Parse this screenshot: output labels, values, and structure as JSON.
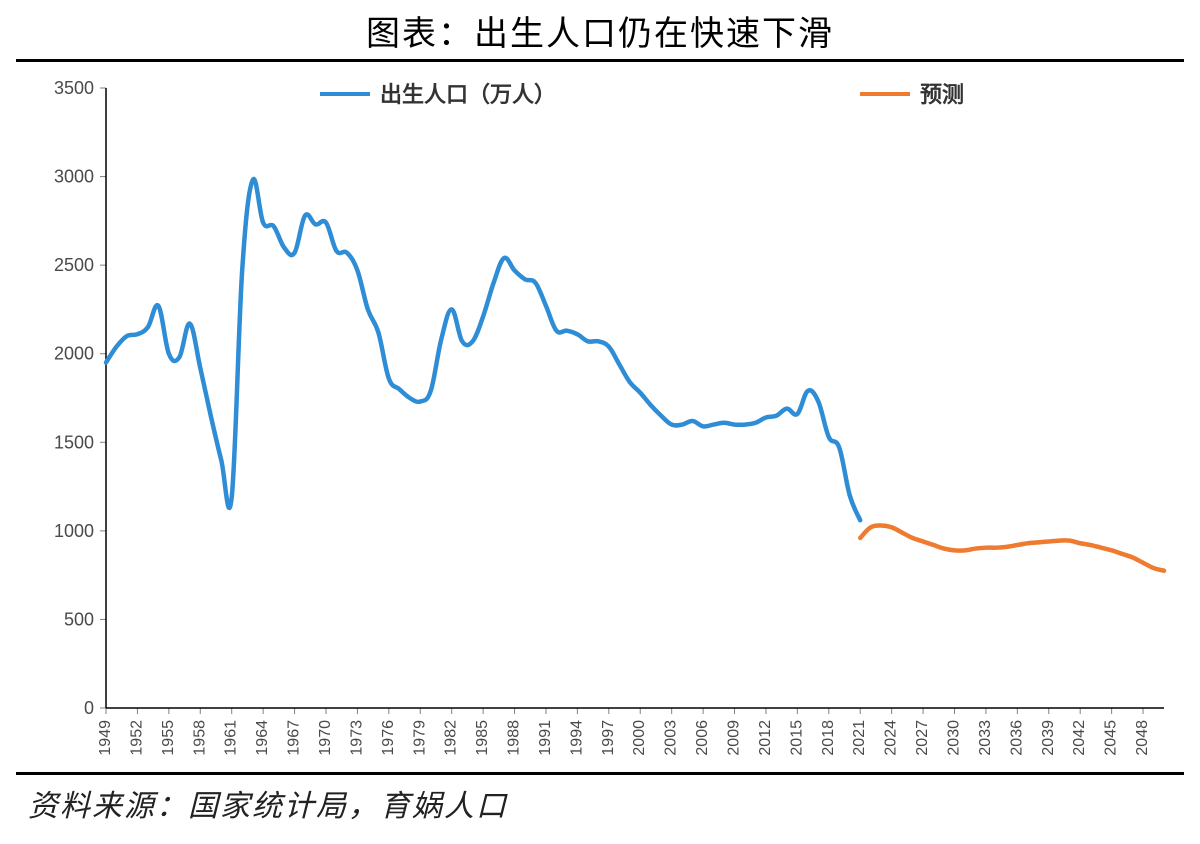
{
  "title": "图表：出生人口仍在快速下滑",
  "source_line": "资料来源：国家统计局，育娲人口",
  "chart": {
    "type": "line",
    "background_color": "#ffffff",
    "plot_border_color": "#000000",
    "axis_tick_color": "#808080",
    "ylabel": "",
    "ylim": [
      0,
      3500
    ],
    "ytick_step": 500,
    "yticks": [
      0,
      500,
      1000,
      1500,
      2000,
      2500,
      3000,
      3500
    ],
    "xlim": [
      1949,
      2050
    ],
    "xticks": [
      1949,
      1952,
      1955,
      1958,
      1961,
      1964,
      1967,
      1970,
      1973,
      1976,
      1979,
      1982,
      1985,
      1988,
      1991,
      1994,
      1997,
      2000,
      2003,
      2006,
      2009,
      2012,
      2015,
      2018,
      2021,
      2024,
      2027,
      2030,
      2033,
      2036,
      2039,
      2042,
      2045,
      2048
    ],
    "legend": {
      "position": "top-center",
      "items": [
        {
          "label": "出生人口（万人）",
          "color": "#2f8dd6"
        },
        {
          "label": "预测",
          "color": "#ee7b30"
        }
      ],
      "line_width": 4
    },
    "series": [
      {
        "name": "出生人口（万人）",
        "color": "#2f8dd6",
        "line_width": 4.5,
        "x": [
          1949,
          1950,
          1951,
          1952,
          1953,
          1954,
          1955,
          1956,
          1957,
          1958,
          1959,
          1960,
          1961,
          1962,
          1963,
          1964,
          1965,
          1966,
          1967,
          1968,
          1969,
          1970,
          1971,
          1972,
          1973,
          1974,
          1975,
          1976,
          1977,
          1978,
          1979,
          1980,
          1981,
          1982,
          1983,
          1984,
          1985,
          1986,
          1987,
          1988,
          1989,
          1990,
          1991,
          1992,
          1993,
          1994,
          1995,
          1996,
          1997,
          1998,
          1999,
          2000,
          2001,
          2002,
          2003,
          2004,
          2005,
          2006,
          2007,
          2008,
          2009,
          2010,
          2011,
          2012,
          2013,
          2014,
          2015,
          2016,
          2017,
          2018,
          2019,
          2020,
          2021
        ],
        "y": [
          1950,
          2040,
          2100,
          2110,
          2150,
          2270,
          2000,
          1980,
          2170,
          1920,
          1650,
          1400,
          1190,
          2470,
          2980,
          2740,
          2720,
          2600,
          2570,
          2780,
          2730,
          2740,
          2580,
          2570,
          2470,
          2250,
          2120,
          1860,
          1800,
          1750,
          1730,
          1790,
          2080,
          2250,
          2070,
          2070,
          2210,
          2400,
          2540,
          2470,
          2420,
          2400,
          2270,
          2130,
          2130,
          2110,
          2070,
          2070,
          2040,
          1940,
          1840,
          1780,
          1710,
          1650,
          1600,
          1600,
          1620,
          1590,
          1600,
          1610,
          1600,
          1600,
          1610,
          1640,
          1650,
          1690,
          1660,
          1790,
          1730,
          1530,
          1470,
          1200,
          1060
        ]
      },
      {
        "name": "预测",
        "color": "#ee7b30",
        "line_width": 4.5,
        "x": [
          2021,
          2022,
          2023,
          2024,
          2025,
          2026,
          2027,
          2028,
          2029,
          2030,
          2031,
          2032,
          2033,
          2034,
          2035,
          2036,
          2037,
          2038,
          2039,
          2040,
          2041,
          2042,
          2043,
          2044,
          2045,
          2046,
          2047,
          2048,
          2049,
          2050
        ],
        "y": [
          960,
          1020,
          1030,
          1020,
          990,
          960,
          940,
          920,
          900,
          890,
          890,
          900,
          905,
          905,
          910,
          920,
          930,
          935,
          940,
          945,
          945,
          930,
          920,
          905,
          890,
          870,
          850,
          820,
          790,
          775
        ]
      }
    ],
    "title_fontsize": 34,
    "tick_fontsize_y": 18,
    "tick_fontsize_x": 16
  }
}
